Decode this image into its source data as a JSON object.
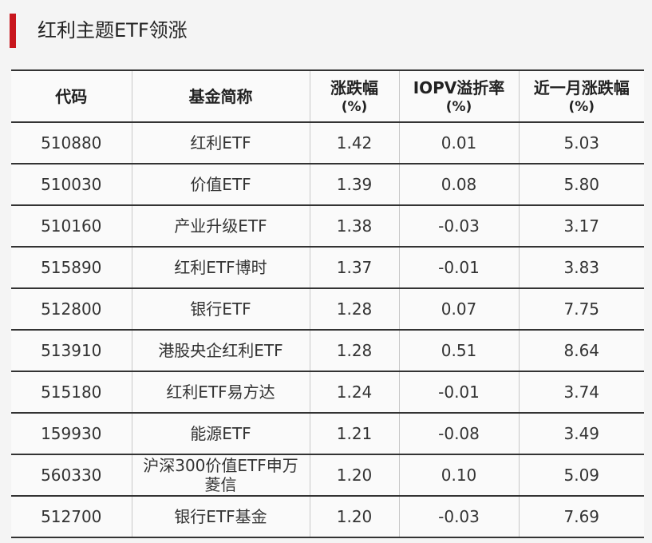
{
  "header": {
    "title": "红利主题ETF领涨"
  },
  "table": {
    "columns": [
      {
        "main": "代码",
        "unit": null
      },
      {
        "main": "基金简称",
        "unit": null
      },
      {
        "main": "涨跌幅",
        "unit": "(%)"
      },
      {
        "main": "IOPV溢折率",
        "unit": "(%)"
      },
      {
        "main": "近一月涨跌幅",
        "unit": "(%)"
      }
    ],
    "rows": [
      [
        "510880",
        "红利ETF",
        "1.42",
        "0.01",
        "5.03"
      ],
      [
        "510030",
        "价值ETF",
        "1.39",
        "0.08",
        "5.80"
      ],
      [
        "510160",
        "产业升级ETF",
        "1.38",
        "-0.03",
        "3.17"
      ],
      [
        "515890",
        "红利ETF博时",
        "1.37",
        "-0.01",
        "3.83"
      ],
      [
        "512800",
        "银行ETF",
        "1.28",
        "0.07",
        "7.75"
      ],
      [
        "513910",
        "港股央企红利ETF",
        "1.28",
        "0.51",
        "8.64"
      ],
      [
        "515180",
        "红利ETF易方达",
        "1.24",
        "-0.01",
        "3.74"
      ],
      [
        "159930",
        "能源ETF",
        "1.21",
        "-0.08",
        "3.49"
      ],
      [
        "560330",
        "沪深300价值ETF申万菱信",
        "1.20",
        "0.10",
        "5.09"
      ],
      [
        "512700",
        "银行ETF基金",
        "1.20",
        "-0.03",
        "7.69"
      ]
    ]
  }
}
